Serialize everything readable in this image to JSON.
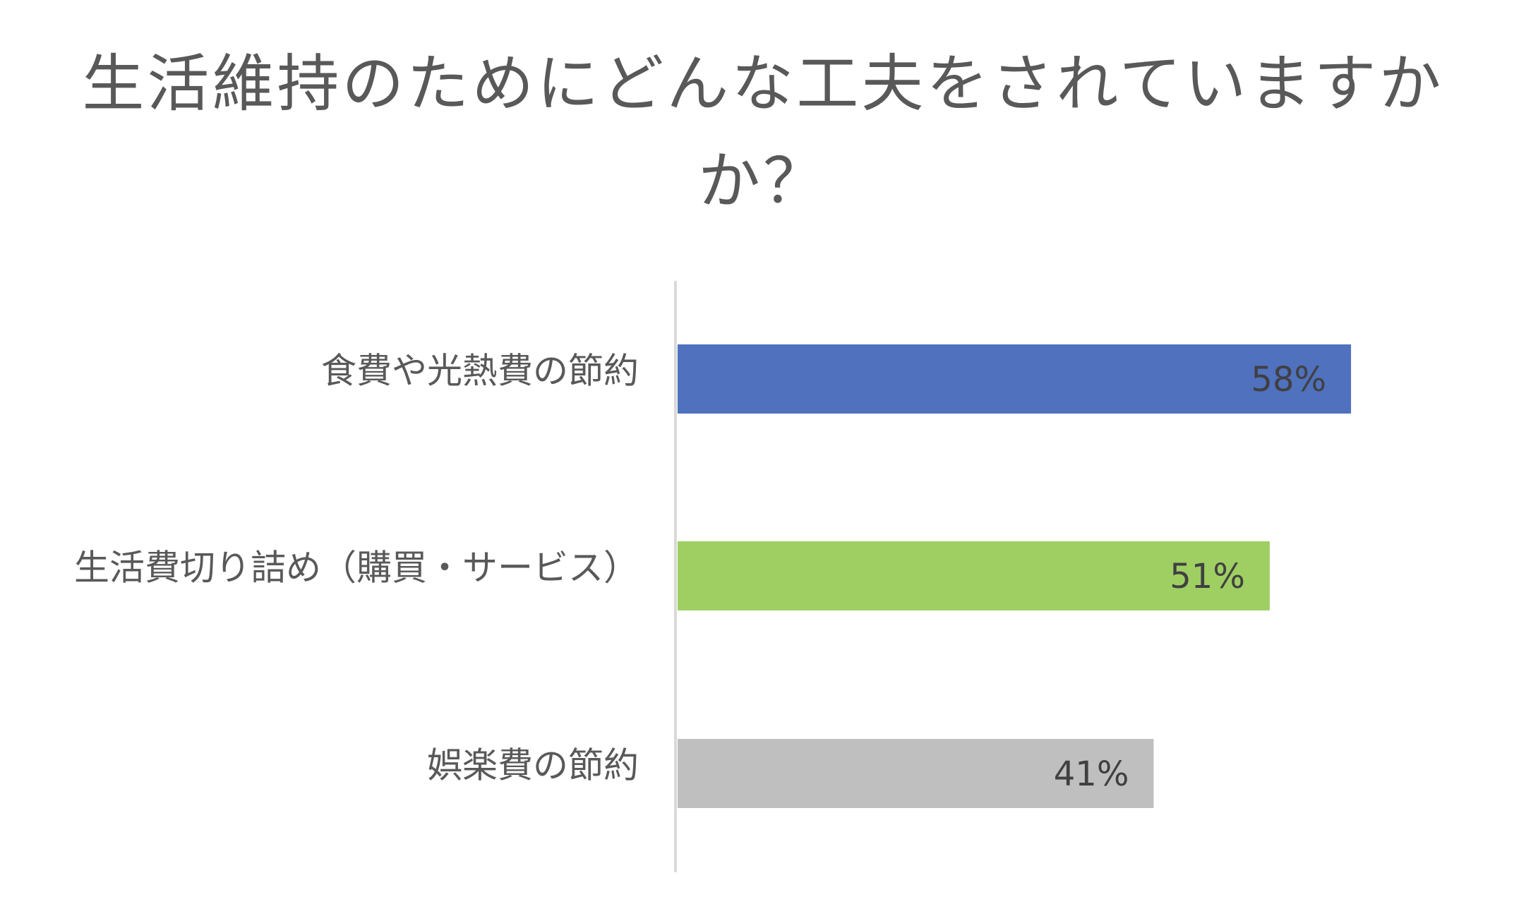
{
  "chart_data": {
    "type": "bar",
    "orientation": "horizontal",
    "title_lines": [
      "生活維持のためにどんな工夫をされていますか",
      "か？"
    ],
    "categories": [
      "食費や光熱費の節約",
      "生活費切り詰め（購買・サービス）",
      "娯楽費の節約"
    ],
    "values": [
      58,
      51,
      41
    ],
    "value_labels": [
      "58%",
      "51%",
      "41%"
    ],
    "bar_colors": [
      "#4F71BE",
      "#9FCF63",
      "#BFBFBF"
    ],
    "axis_color": "#D9D9D9",
    "xlim": [
      0,
      100
    ],
    "grid": false,
    "legend": "none"
  }
}
